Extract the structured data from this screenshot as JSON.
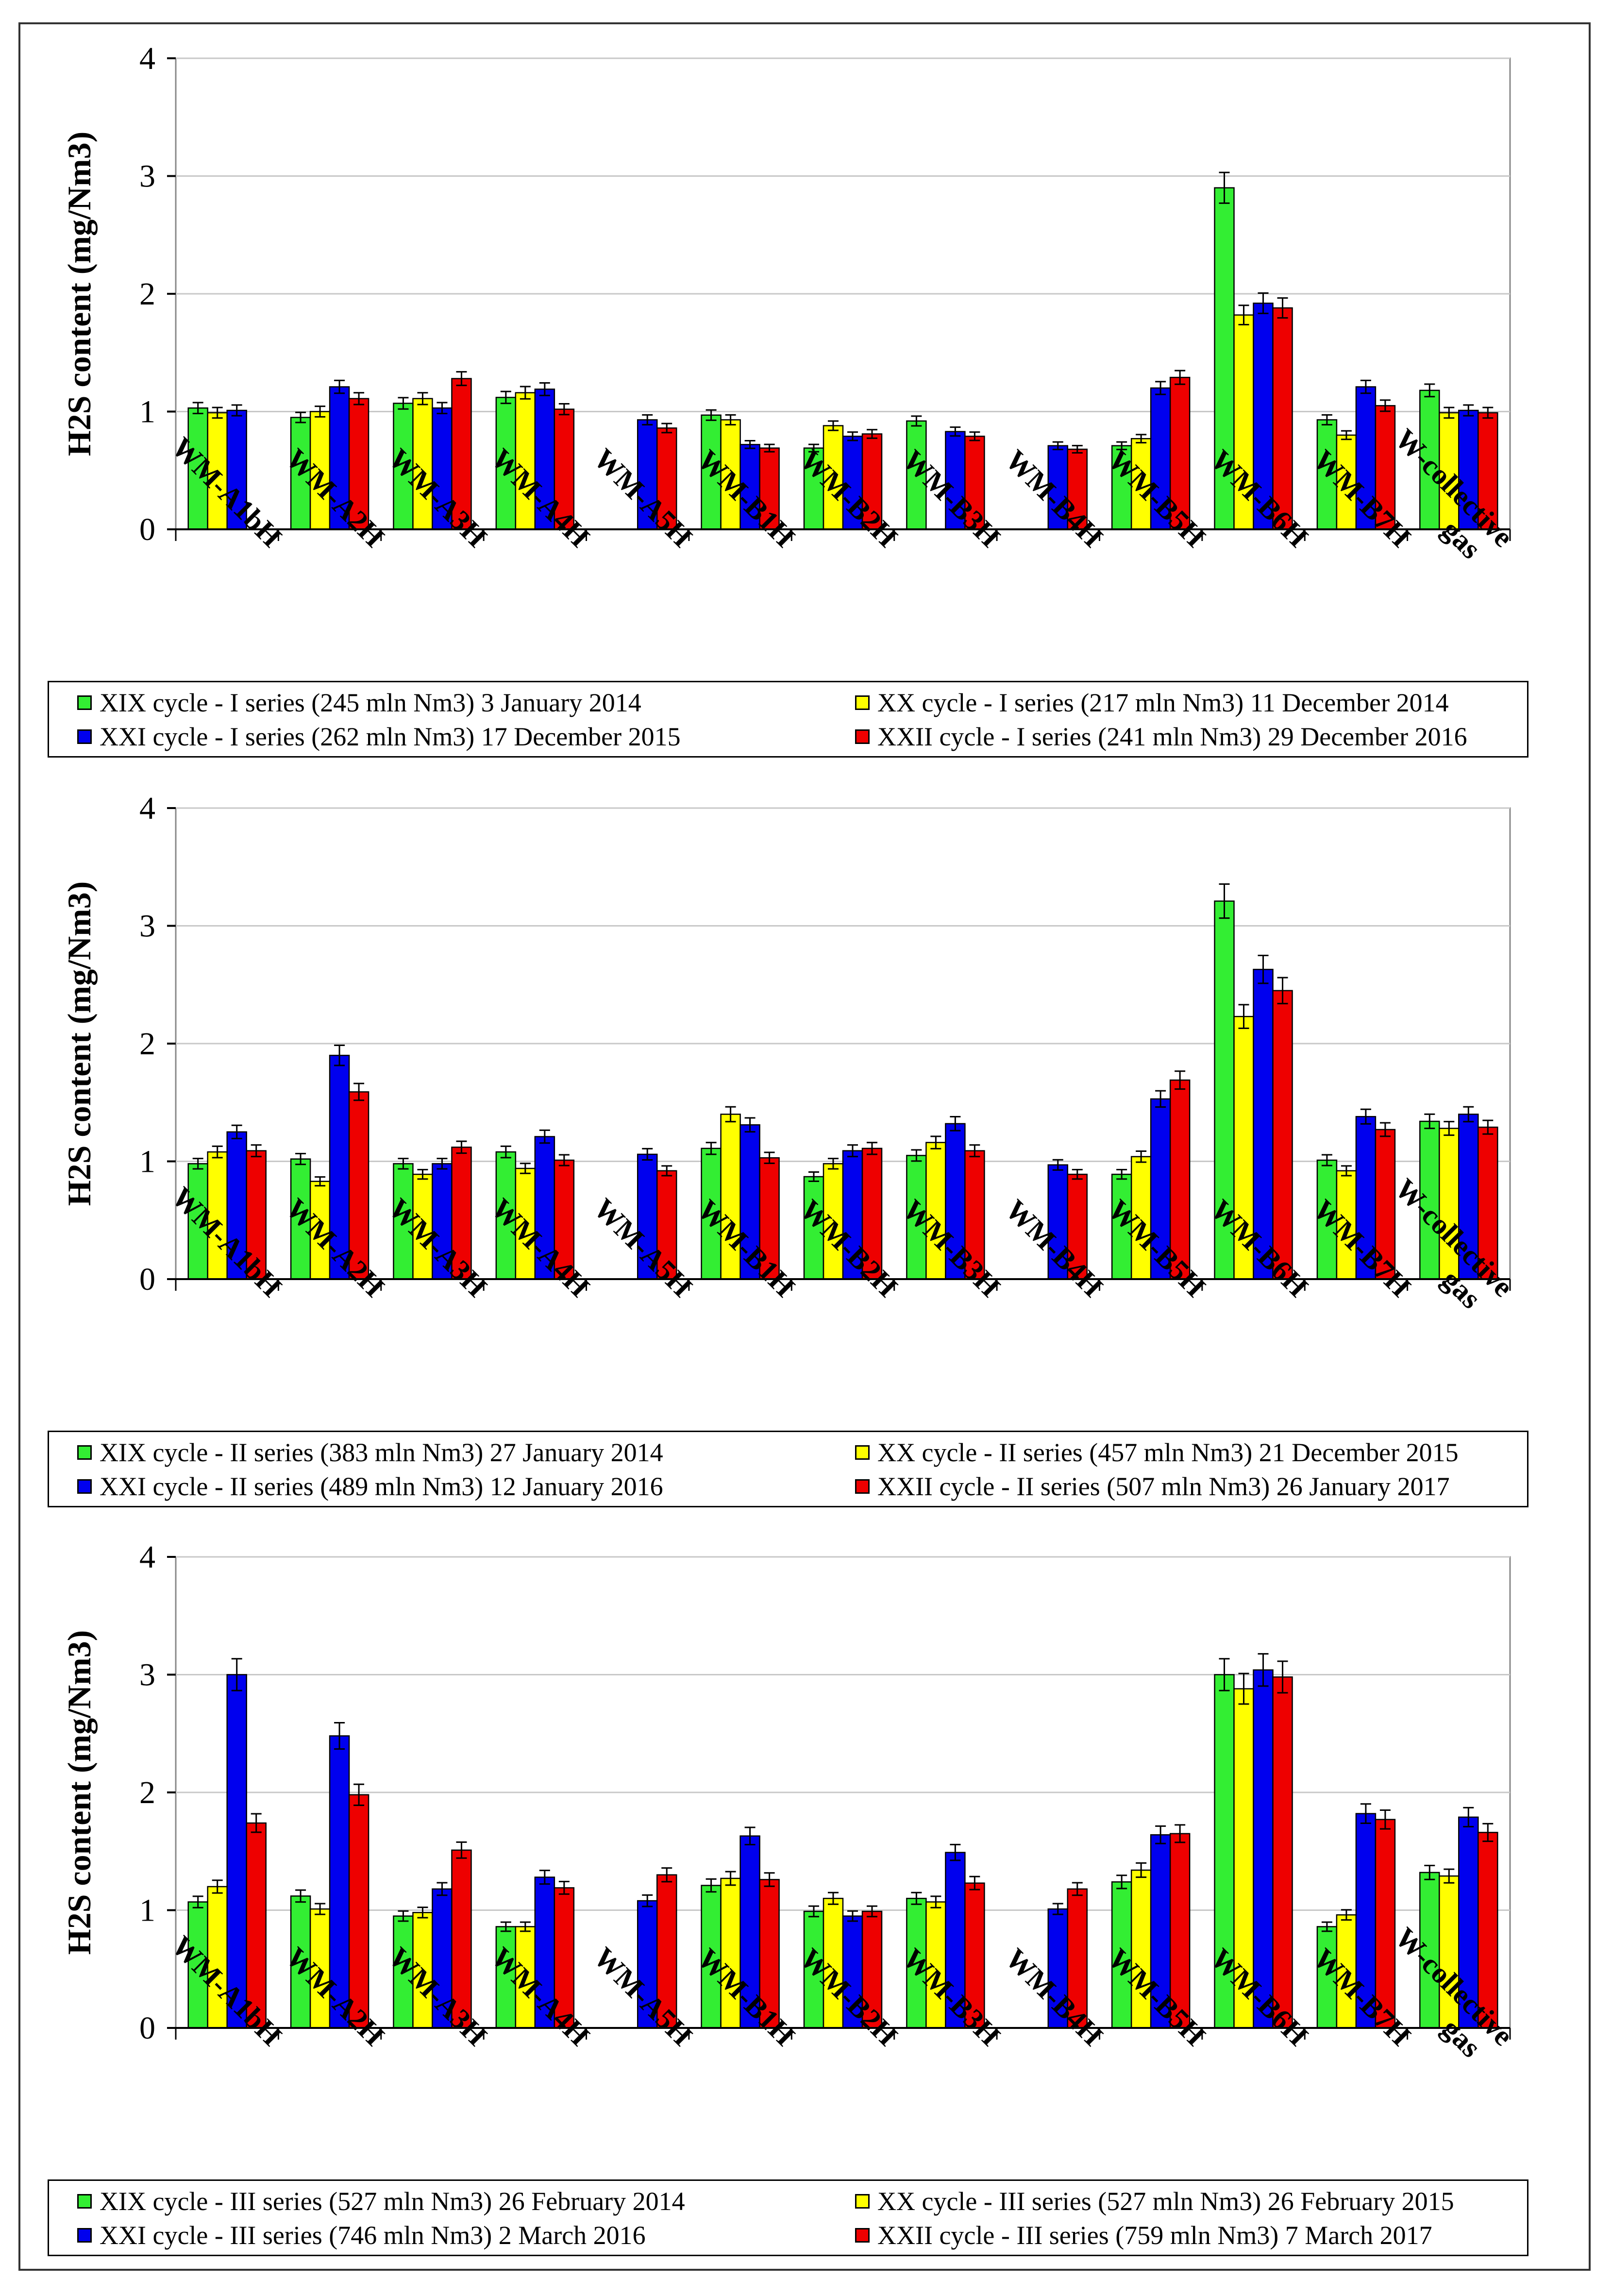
{
  "colors": {
    "series": [
      "#33ee33",
      "#ffff00",
      "#0000ee",
      "#ee0000"
    ],
    "grid": "#c8c8c8",
    "axis": "#000000"
  },
  "chart_data": [
    {
      "type": "bar",
      "title": "",
      "ylabel": "H2S content (mg/Nm3)",
      "ylim": [
        0,
        4
      ],
      "yticks": [
        "0",
        "1",
        "2",
        "3",
        "4"
      ],
      "categories": [
        "WM-A1bH",
        "WM-A2H",
        "WM-A3H",
        "WM-A4H",
        "WM-A5H",
        "WM-B1H",
        "WM-B2H",
        "WM-B3H",
        "WM-B4H",
        "WM-B5H",
        "WM-B6H",
        "WM-B7H",
        "W-collective gas"
      ],
      "series": [
        {
          "name": "XIX cycle - I series (245 mln Nm3) 3 January 2014",
          "values": [
            1.03,
            0.95,
            1.07,
            1.12,
            null,
            0.97,
            0.69,
            0.92,
            null,
            0.71,
            2.9,
            0.93,
            1.18
          ]
        },
        {
          "name": "XX cycle - I series (217 mln Nm3) 11 December 2014",
          "values": [
            0.99,
            1.0,
            1.11,
            1.16,
            null,
            0.93,
            0.88,
            null,
            null,
            0.77,
            1.82,
            0.8,
            0.99
          ]
        },
        {
          "name": "XXI cycle - I series (262 mln Nm3) 17 December 2015",
          "values": [
            1.01,
            1.21,
            1.03,
            1.19,
            0.93,
            0.72,
            0.79,
            0.83,
            0.71,
            1.2,
            1.92,
            1.21,
            1.01
          ]
        },
        {
          "name": "XXII cycle - I series (241 mln Nm3) 29 December 2016",
          "values": [
            null,
            1.11,
            1.28,
            1.02,
            0.86,
            0.69,
            0.81,
            0.79,
            0.68,
            1.29,
            1.88,
            1.05,
            0.99
          ]
        }
      ]
    },
    {
      "type": "bar",
      "title": "",
      "ylabel": "H2S content (mg/Nm3)",
      "ylim": [
        0,
        4
      ],
      "yticks": [
        "0",
        "1",
        "2",
        "3",
        "4"
      ],
      "categories": [
        "WM-A1bH",
        "WM-A2H",
        "WM-A3H",
        "WM-A4H",
        "WM-A5H",
        "WM-B1H",
        "WM-B2H",
        "WM-B3H",
        "WM-B4H",
        "WM-B5H",
        "WM-B6H",
        "WM-B7H",
        "W-collective gas"
      ],
      "series": [
        {
          "name": "XIX cycle - II series (383 mln Nm3) 27 January 2014",
          "values": [
            0.98,
            1.02,
            0.98,
            1.08,
            0,
            1.11,
            0.87,
            1.05,
            0,
            0.89,
            3.21,
            1.01,
            1.34
          ]
        },
        {
          "name": "XX cycle - II series (457 mln Nm3) 21 December 2015",
          "values": [
            1.08,
            0.83,
            0.89,
            0.94,
            0,
            1.4,
            0.98,
            1.16,
            0,
            1.04,
            2.23,
            0.92,
            1.28
          ]
        },
        {
          "name": "XXI cycle - II series (489 mln Nm3) 12 January 2016",
          "values": [
            1.25,
            1.9,
            0.98,
            1.21,
            1.06,
            1.31,
            1.09,
            1.32,
            0.97,
            1.53,
            2.63,
            1.38,
            1.4
          ]
        },
        {
          "name": "XXII cycle - II series (507 mln Nm3) 26 January 2017",
          "values": [
            1.09,
            1.59,
            1.12,
            1.01,
            0.92,
            1.03,
            1.11,
            1.09,
            0.89,
            1.69,
            2.45,
            1.27,
            1.29
          ]
        }
      ]
    },
    {
      "type": "bar",
      "title": "",
      "ylabel": "H2S content (mg/Nm3)",
      "ylim": [
        0,
        4
      ],
      "yticks": [
        "0",
        "1",
        "2",
        "3",
        "4"
      ],
      "categories": [
        "WM-A1bH",
        "WM-A2H",
        "WM-A3H",
        "WM-A4H",
        "WM-A5H",
        "WM-B1H",
        "WM-B2H",
        "WM-B3H",
        "WM-B4H",
        "WM-B5H",
        "WM-B6H",
        "WM-B7H",
        "W-collective gas"
      ],
      "series": [
        {
          "name": "XIX cycle - III series (527 mln Nm3) 26 February 2014",
          "values": [
            1.07,
            1.12,
            0.95,
            0.86,
            0,
            1.21,
            0.99,
            1.1,
            0,
            1.24,
            3.0,
            0.86,
            1.32
          ]
        },
        {
          "name": "XX cycle - III series (527 mln Nm3) 26 February 2015",
          "values": [
            1.2,
            1.01,
            0.98,
            0.86,
            0,
            1.27,
            1.1,
            1.07,
            0,
            1.34,
            2.88,
            0.96,
            1.29
          ]
        },
        {
          "name": "XXI cycle - III series (746 mln Nm3) 2 March 2016",
          "values": [
            3.0,
            2.48,
            1.18,
            1.28,
            1.08,
            1.63,
            0.95,
            1.49,
            1.01,
            1.64,
            3.04,
            1.82,
            1.79
          ]
        },
        {
          "name": "XXII cycle - III series (759 mln Nm3) 7 March 2017",
          "values": [
            1.74,
            1.98,
            1.51,
            1.19,
            1.3,
            1.26,
            0.99,
            1.23,
            1.18,
            1.65,
            2.98,
            1.77,
            1.66
          ]
        }
      ]
    }
  ]
}
